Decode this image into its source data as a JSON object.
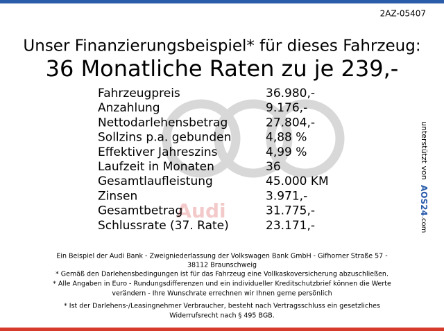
{
  "code": "2AZ-05407",
  "headline": "Unser Finanzierungsbeispiel* für dieses Fahrzeug:",
  "subheadline": "36 Monatliche Raten zu je 239,-",
  "watermark": "Audi",
  "table": {
    "rows": [
      [
        "Fahrzeugpreis",
        "36.980,-"
      ],
      [
        "Anzahlung",
        "9.176,-"
      ],
      [
        "Nettodarlehensbetrag",
        "27.804,-"
      ],
      [
        "Sollzins p.a. gebunden",
        "4,88 %"
      ],
      [
        "Effektiver Jahreszins",
        "4,99 %"
      ],
      [
        "Laufzeit in Monaten",
        "36"
      ],
      [
        "Gesamtlaufleistung",
        "45.000 KM"
      ],
      [
        "Zinsen",
        "3.971,-"
      ],
      [
        "Gesamtbetrag",
        "31.775,-"
      ],
      [
        "Schlussrate (37. Rate)",
        "23.171,-"
      ]
    ]
  },
  "sponsor": {
    "label": "unterstützt von",
    "logo": "AOS24",
    "domain": ".com"
  },
  "footer": {
    "lines": [
      "Ein Beispiel der Audi Bank -  Zweigniederlassung der Volkswagen Bank GmbH - Gifhorner Straße 57 -",
      "38112 Braunschweig",
      "* Gemäß den Darlehensbedingungen ist für das Fahrzeug eine Vollkaskoversicherung abzuschließen.",
      "* Alle Angaben in Euro - Rundungsdifferenzen und ein individueller Kreditschutzbrief können die Werte",
      "verändern - Ihre Wunschrate errechnen wir Ihnen gerne persönlich",
      "* Ist der Darlehens-/Leasingnehmer Verbraucher, besteht nach Vertragsschluss ein gesetzliches",
      "Widerrufsrecht nach § 495 BGB."
    ]
  }
}
